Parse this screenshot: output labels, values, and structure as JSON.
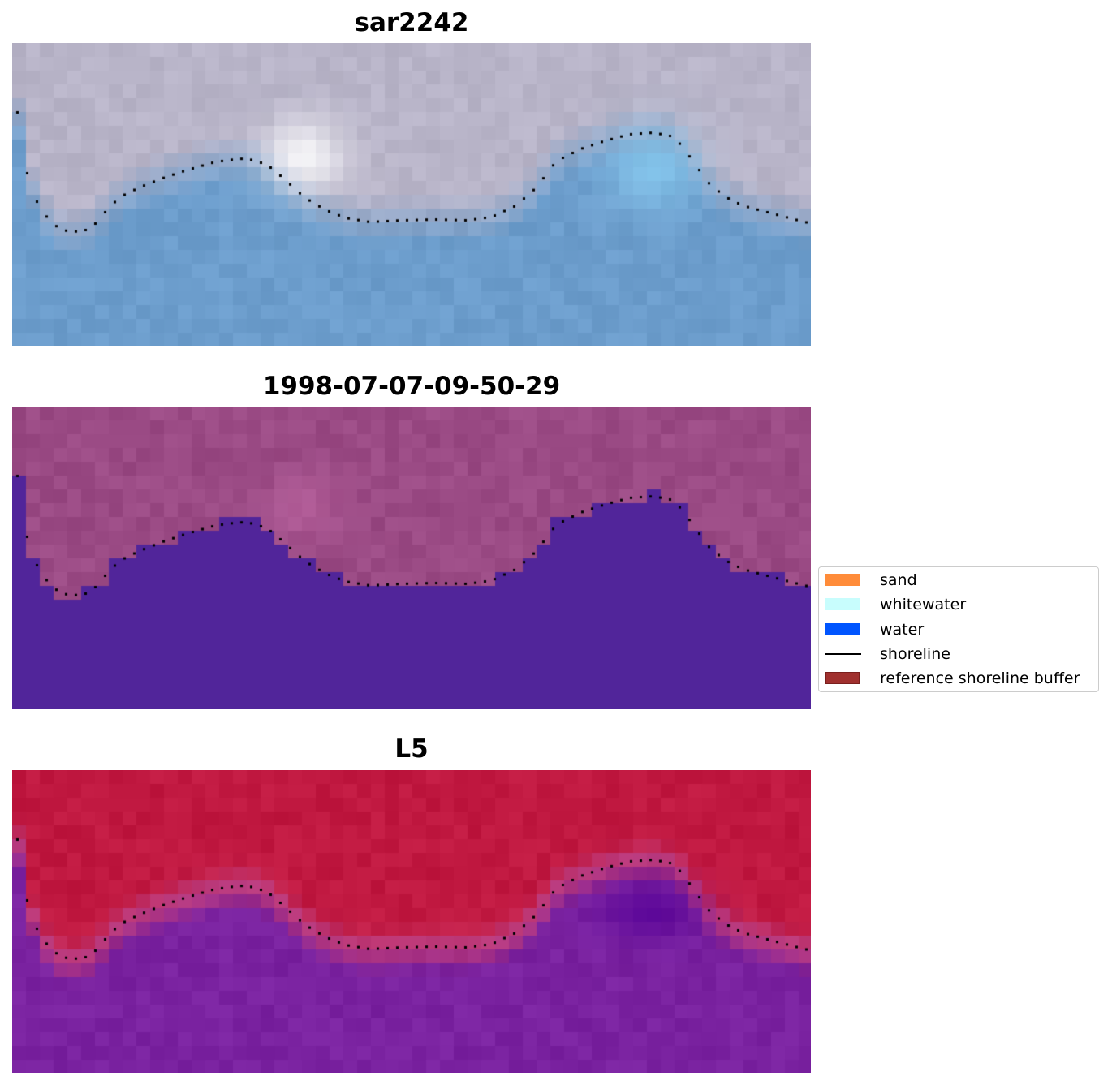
{
  "panels": [
    {
      "title": "sar2242",
      "style": "rgb"
    },
    {
      "title": "1998-07-07-09-50-29",
      "style": "classified"
    },
    {
      "title": "L5",
      "style": "index"
    }
  ],
  "legend": {
    "items": [
      {
        "label": "sand",
        "kind": "patch",
        "color": "#ff8c3a"
      },
      {
        "label": "whitewater",
        "kind": "patch",
        "color": "#c8fdfd"
      },
      {
        "label": "water",
        "kind": "patch",
        "color": "#0055ff"
      },
      {
        "label": "shoreline",
        "kind": "line",
        "color": "#000000"
      },
      {
        "label": "reference shoreline buffer",
        "kind": "patch",
        "color": "#a0302e"
      }
    ]
  },
  "colors": {
    "land_rgb": "#b8b4c8",
    "sea_rgb": "#6c9dcc",
    "land_classified": "#9a4a84",
    "water_classified": "#51259a",
    "land_index": "#c01840",
    "water_index": "#7a22a0",
    "shoreline_dots": "#000000"
  }
}
